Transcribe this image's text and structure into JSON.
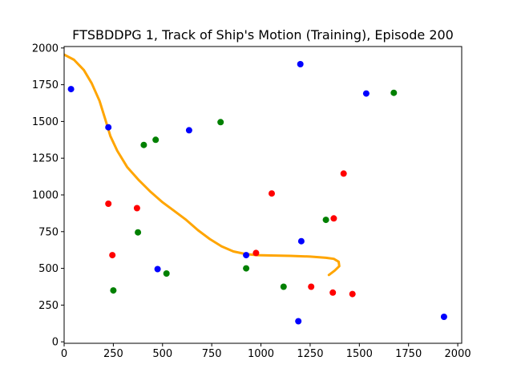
{
  "chart_data": {
    "type": "scatter",
    "title": "FTSBDDPG 1, Track of Ship's Motion (Training), Episode 200",
    "xlabel": "",
    "ylabel": "",
    "xlim": [
      0,
      2020
    ],
    "ylim": [
      -10,
      2010
    ],
    "grid": false,
    "x_ticks": [
      0,
      250,
      500,
      750,
      1000,
      1250,
      1500,
      1750,
      2000
    ],
    "y_ticks": [
      0,
      250,
      500,
      750,
      1000,
      1250,
      1500,
      1750,
      2000
    ],
    "series": [
      {
        "color": "#0000ff",
        "points": [
          [
            35,
            1720
          ],
          [
            225,
            1460
          ],
          [
            635,
            1440
          ],
          [
            1200,
            1890
          ],
          [
            1535,
            1690
          ],
          [
            925,
            590
          ],
          [
            1205,
            685
          ],
          [
            475,
            495
          ],
          [
            1190,
            140
          ],
          [
            1930,
            170
          ]
        ]
      },
      {
        "color": "#008000",
        "points": [
          [
            405,
            1340
          ],
          [
            465,
            1375
          ],
          [
            795,
            1495
          ],
          [
            1675,
            1695
          ],
          [
            375,
            745
          ],
          [
            925,
            500
          ],
          [
            520,
            465
          ],
          [
            250,
            350
          ],
          [
            1115,
            375
          ],
          [
            1330,
            830
          ]
        ]
      },
      {
        "color": "#ff0000",
        "points": [
          [
            225,
            940
          ],
          [
            370,
            910
          ],
          [
            245,
            590
          ],
          [
            975,
            605
          ],
          [
            1055,
            1010
          ],
          [
            1420,
            1145
          ],
          [
            1370,
            840
          ],
          [
            1255,
            375
          ],
          [
            1365,
            335
          ],
          [
            1465,
            325
          ]
        ]
      },
      {
        "color": "#ffa500",
        "type": "line",
        "points": [
          [
            0,
            1955
          ],
          [
            50,
            1920
          ],
          [
            100,
            1850
          ],
          [
            140,
            1760
          ],
          [
            180,
            1640
          ],
          [
            210,
            1510
          ],
          [
            235,
            1400
          ],
          [
            270,
            1300
          ],
          [
            320,
            1190
          ],
          [
            380,
            1100
          ],
          [
            440,
            1020
          ],
          [
            500,
            950
          ],
          [
            560,
            890
          ],
          [
            620,
            830
          ],
          [
            680,
            760
          ],
          [
            740,
            700
          ],
          [
            800,
            650
          ],
          [
            860,
            615
          ],
          [
            920,
            598
          ],
          [
            980,
            590
          ],
          [
            1050,
            588
          ],
          [
            1150,
            585
          ],
          [
            1250,
            580
          ],
          [
            1330,
            572
          ],
          [
            1370,
            565
          ],
          [
            1395,
            545
          ],
          [
            1398,
            515
          ],
          [
            1375,
            485
          ],
          [
            1350,
            460
          ],
          [
            1345,
            455
          ]
        ]
      }
    ]
  }
}
